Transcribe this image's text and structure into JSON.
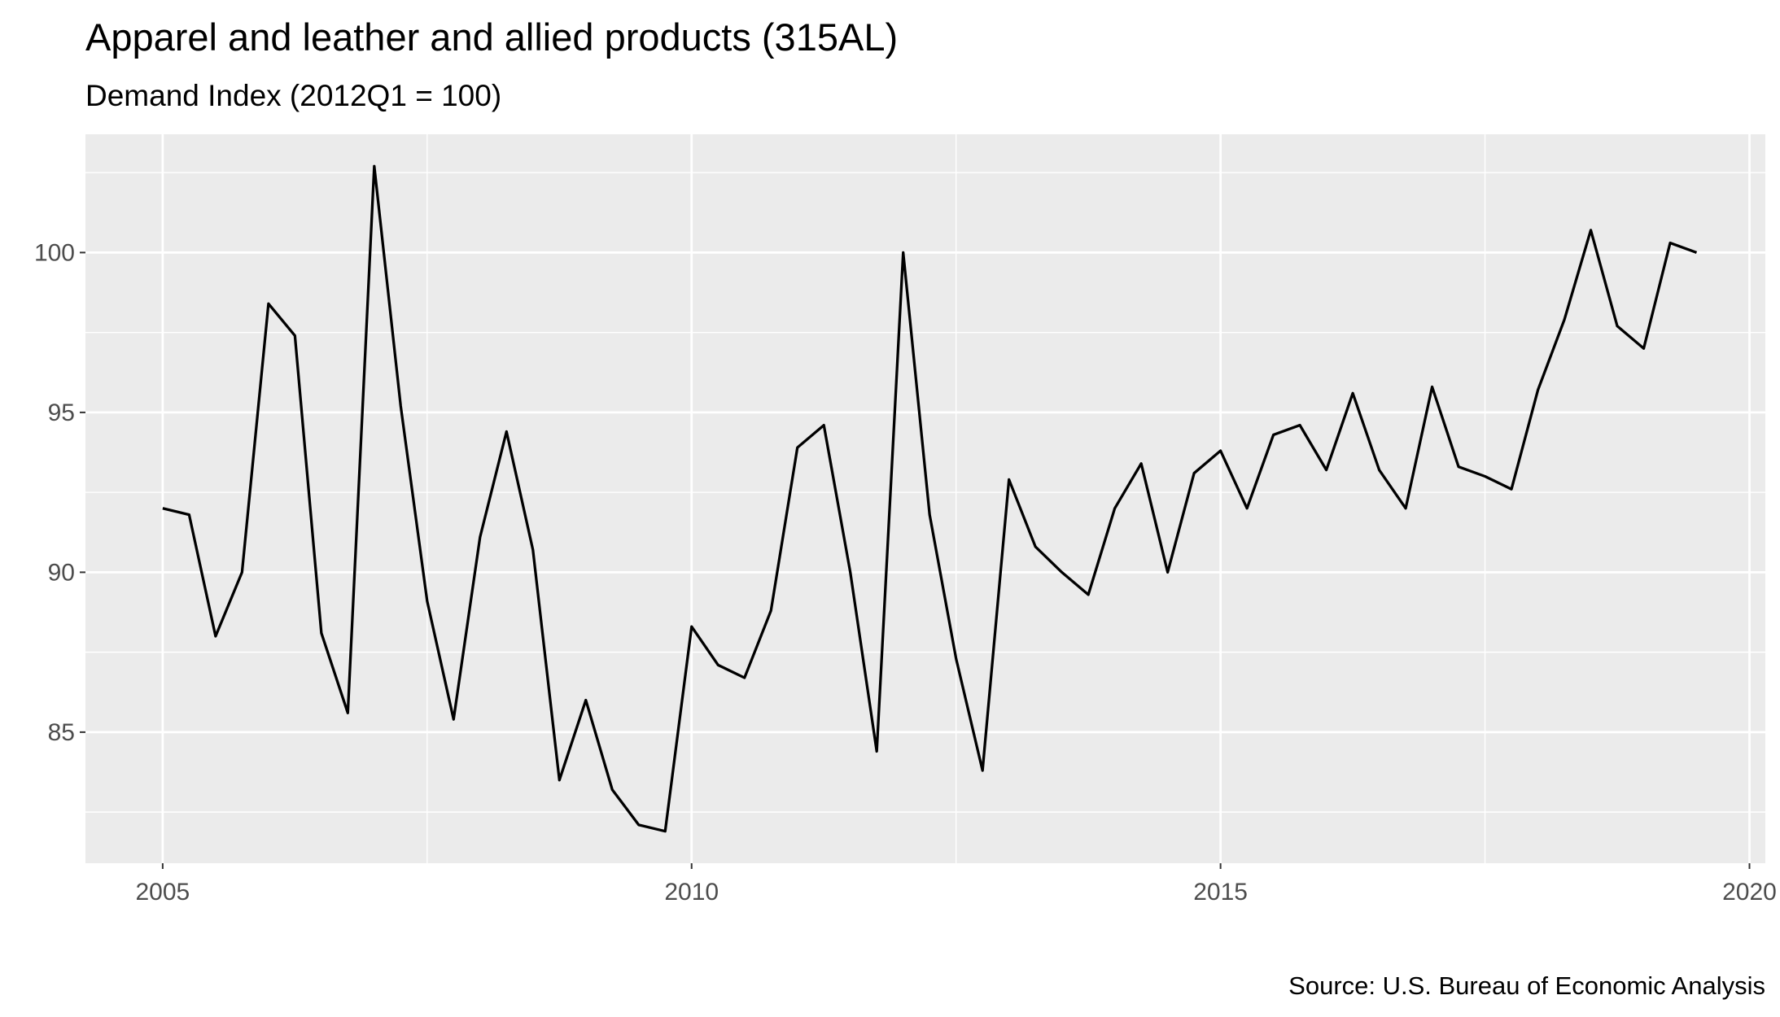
{
  "chart_data": {
    "type": "line",
    "title": "Apparel and leather and allied products (315AL)",
    "subtitle": "Demand Index (2012Q1 = 100)",
    "caption": "Source: U.S. Bureau of Economic Analysis",
    "xlabel": "",
    "ylabel": "",
    "xlim": [
      2004.27,
      2020.15
    ],
    "ylim": [
      80.9,
      103.7
    ],
    "x_ticks": [
      2005,
      2010,
      2015,
      2020
    ],
    "x_tick_labels": [
      "2005",
      "2010",
      "2015",
      "2020"
    ],
    "y_ticks": [
      85,
      90,
      95,
      100
    ],
    "y_tick_labels": [
      "85",
      "90",
      "95",
      "100"
    ],
    "grid": true,
    "legend": "none",
    "colors": {
      "panel_background": "#ebebeb",
      "grid": "#ffffff",
      "line": "#000000",
      "tick_text": "#4d4d4d"
    },
    "series": [
      {
        "x": [
          2005.0,
          2005.25,
          2005.5,
          2005.75,
          2006.0,
          2006.25,
          2006.5,
          2006.75,
          2007.0,
          2007.25,
          2007.5,
          2007.75,
          2008.0,
          2008.25,
          2008.5,
          2008.75,
          2009.0,
          2009.25,
          2009.5,
          2009.75,
          2010.0,
          2010.25,
          2010.5,
          2010.75,
          2011.0,
          2011.25,
          2011.5,
          2011.75,
          2012.0,
          2012.25,
          2012.5,
          2012.75,
          2013.0,
          2013.25,
          2013.5,
          2013.75,
          2014.0,
          2014.25,
          2014.5,
          2014.75,
          2015.0,
          2015.25,
          2015.5,
          2015.75,
          2016.0,
          2016.25,
          2016.5,
          2016.75,
          2017.0,
          2017.25,
          2017.5,
          2017.75,
          2018.0,
          2018.25,
          2018.5,
          2018.75,
          2019.0,
          2019.25,
          2019.5
        ],
        "values": [
          92.0,
          91.8,
          88.0,
          90.0,
          98.4,
          97.4,
          88.1,
          85.6,
          102.7,
          95.2,
          89.1,
          85.4,
          91.1,
          94.4,
          90.7,
          83.5,
          86.0,
          83.2,
          82.1,
          81.9,
          88.3,
          87.1,
          86.7,
          88.8,
          93.9,
          94.6,
          90.0,
          84.4,
          100.0,
          91.8,
          87.3,
          83.8,
          92.9,
          90.8,
          90.0,
          89.3,
          92.0,
          93.4,
          90.0,
          93.1,
          93.8,
          92.0,
          94.3,
          94.6,
          93.2,
          95.6,
          93.2,
          92.0,
          95.8,
          93.3,
          93.0,
          92.6,
          95.7,
          97.9,
          100.7,
          97.7,
          97.0,
          100.3,
          100.0
        ]
      }
    ]
  }
}
